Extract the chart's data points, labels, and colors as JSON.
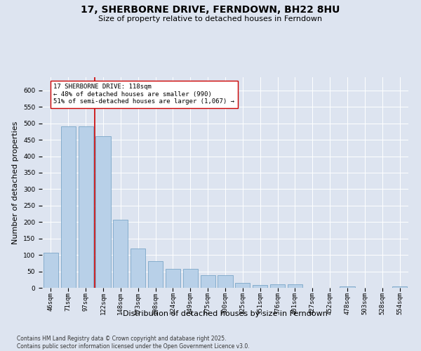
{
  "title": "17, SHERBORNE DRIVE, FERNDOWN, BH22 8HU",
  "subtitle": "Size of property relative to detached houses in Ferndown",
  "xlabel": "Distribution of detached houses by size in Ferndown",
  "ylabel": "Number of detached properties",
  "footer": "Contains HM Land Registry data © Crown copyright and database right 2025.\nContains public sector information licensed under the Open Government Licence v3.0.",
  "categories": [
    "46sqm",
    "71sqm",
    "97sqm",
    "122sqm",
    "148sqm",
    "173sqm",
    "198sqm",
    "224sqm",
    "249sqm",
    "275sqm",
    "300sqm",
    "325sqm",
    "351sqm",
    "376sqm",
    "401sqm",
    "427sqm",
    "452sqm",
    "478sqm",
    "503sqm",
    "528sqm",
    "554sqm"
  ],
  "values": [
    106,
    490,
    490,
    460,
    208,
    120,
    82,
    58,
    58,
    38,
    38,
    14,
    8,
    10,
    10,
    0,
    0,
    5,
    0,
    0,
    5
  ],
  "bar_color": "#b8d0e8",
  "bar_edge_color": "#6a9cc0",
  "vline_x": 2.5,
  "vline_color": "#cc0000",
  "annotation_text": "17 SHERBORNE DRIVE: 118sqm\n← 48% of detached houses are smaller (990)\n51% of semi-detached houses are larger (1,067) →",
  "annotation_box_color": "#ffffff",
  "annotation_box_edge_color": "#cc0000",
  "ylim": [
    0,
    640
  ],
  "yticks": [
    0,
    50,
    100,
    150,
    200,
    250,
    300,
    350,
    400,
    450,
    500,
    550,
    600
  ],
  "background_color": "#dde4f0",
  "plot_bg_color": "#dde4f0",
  "title_fontsize": 10,
  "subtitle_fontsize": 8,
  "tick_fontsize": 6.5,
  "label_fontsize": 8,
  "footer_fontsize": 5.5
}
